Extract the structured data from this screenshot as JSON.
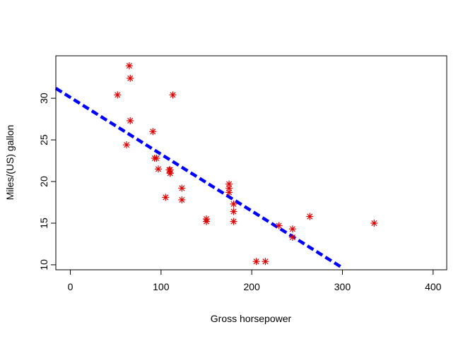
{
  "chart_data": {
    "type": "scatter",
    "title": "",
    "xlabel": "Gross horsepower",
    "ylabel": "Miles/(US) gallon",
    "xlim": [
      -16,
      415
    ],
    "ylim": [
      9.4,
      35.1
    ],
    "xticks": [
      0,
      100,
      200,
      300,
      400
    ],
    "yticks": [
      10,
      15,
      20,
      25,
      30
    ],
    "xtick_labels": [
      "0",
      "100",
      "200",
      "300",
      "400"
    ],
    "ytick_labels": [
      "10",
      "15",
      "20",
      "25",
      "30"
    ],
    "grid": false,
    "legend": "none",
    "series": [
      {
        "marker": "asterisk",
        "color": "#dd0000",
        "points": [
          [
            110,
            21.0
          ],
          [
            110,
            21.0
          ],
          [
            93,
            22.8
          ],
          [
            110,
            21.4
          ],
          [
            175,
            18.7
          ],
          [
            105,
            18.1
          ],
          [
            245,
            14.3
          ],
          [
            62,
            24.4
          ],
          [
            95,
            22.8
          ],
          [
            123,
            19.2
          ],
          [
            123,
            17.8
          ],
          [
            180,
            16.4
          ],
          [
            180,
            17.3
          ],
          [
            180,
            15.2
          ],
          [
            205,
            10.4
          ],
          [
            215,
            10.4
          ],
          [
            230,
            14.7
          ],
          [
            66,
            32.4
          ],
          [
            52,
            30.4
          ],
          [
            65,
            33.9
          ],
          [
            97,
            21.5
          ],
          [
            150,
            15.5
          ],
          [
            150,
            15.2
          ],
          [
            245,
            13.3
          ],
          [
            175,
            19.2
          ],
          [
            66,
            27.3
          ],
          [
            91,
            26.0
          ],
          [
            113,
            30.4
          ],
          [
            264,
            15.8
          ],
          [
            175,
            19.7
          ],
          [
            335,
            15.0
          ],
          [
            109,
            21.4
          ]
        ]
      }
    ],
    "fit_line": {
      "style": "dashed",
      "color": "#0000ff",
      "intercept": 30.1,
      "slope": -0.0682,
      "x_range": [
        -16,
        298
      ]
    }
  }
}
